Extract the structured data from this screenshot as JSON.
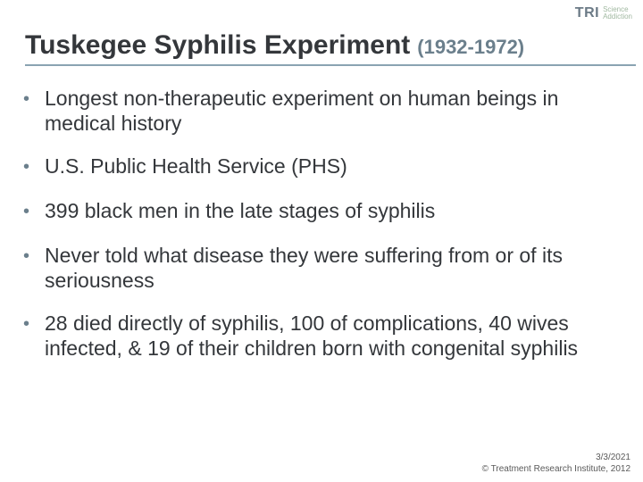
{
  "logo": {
    "main": "TRI",
    "line1": "Science",
    "line2": "Addiction"
  },
  "title": {
    "main": "Tuskegee Syphilis Experiment",
    "years": "(1932-1972)"
  },
  "bullets": [
    "Longest non-therapeutic experiment on human beings in medical history",
    "U.S. Public Health Service (PHS)",
    "399 black men in the late stages of syphilis",
    "Never told what disease they were suffering from or of its seriousness",
    "28 died directly of syphilis, 100 of complications, 40 wives infected, & 19 of their children born with congenital syphilis"
  ],
  "footer": {
    "date": "3/3/2021",
    "copyright": "© Treatment Research Institute, 2012"
  },
  "colors": {
    "title_text": "#34373b",
    "accent": "#6b7f8c",
    "underline": "#8aa3b2",
    "body_text": "#34373b",
    "logo_gray": "#6b7a86",
    "logo_green": "#a0b8a0",
    "background": "#ffffff",
    "footer_text": "#5a5a5a"
  },
  "typography": {
    "title_fontsize": 30,
    "years_fontsize": 22,
    "bullet_fontsize": 23,
    "footer_fontsize": 10,
    "font_family": "Arial"
  }
}
